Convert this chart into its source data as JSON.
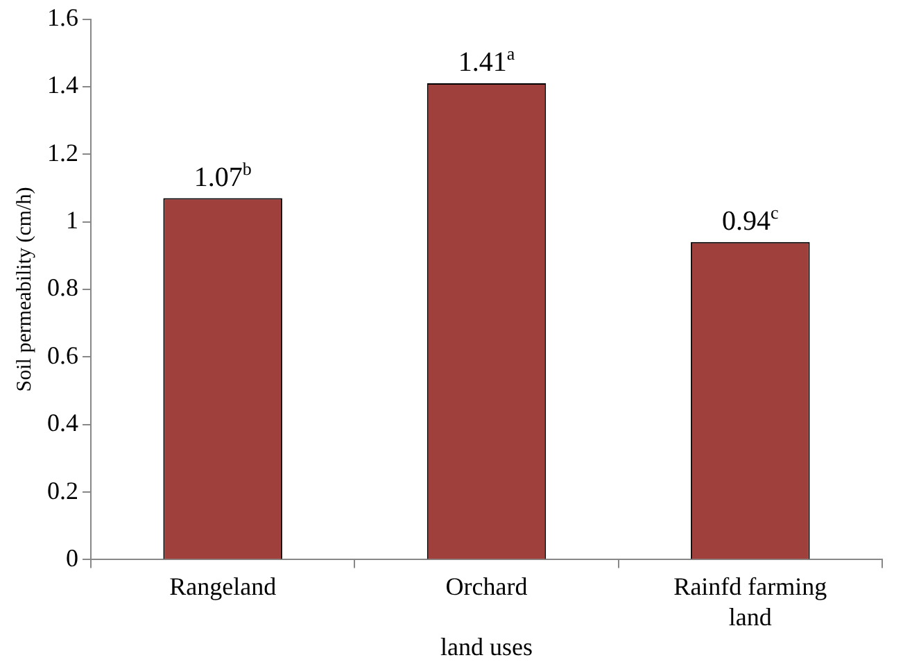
{
  "chart_data": {
    "type": "bar",
    "categories": [
      "Rangeland",
      "Orchard",
      "Rainfd farming land"
    ],
    "values": [
      1.07,
      1.41,
      0.94
    ],
    "value_labels": [
      "1.07$^{b}$",
      "1.41$^{a}$",
      "0.94$^{c}$"
    ],
    "color": "#a0403c",
    "xlabel": "land uses",
    "ylabel": "Soil permeability (cm/h)",
    "ylim": [
      0,
      1.6
    ],
    "yticks": [
      0,
      0.2,
      0.4,
      0.6,
      0.8,
      1,
      1.2,
      1.4,
      1.6
    ],
    "grid": false,
    "legend": false
  }
}
